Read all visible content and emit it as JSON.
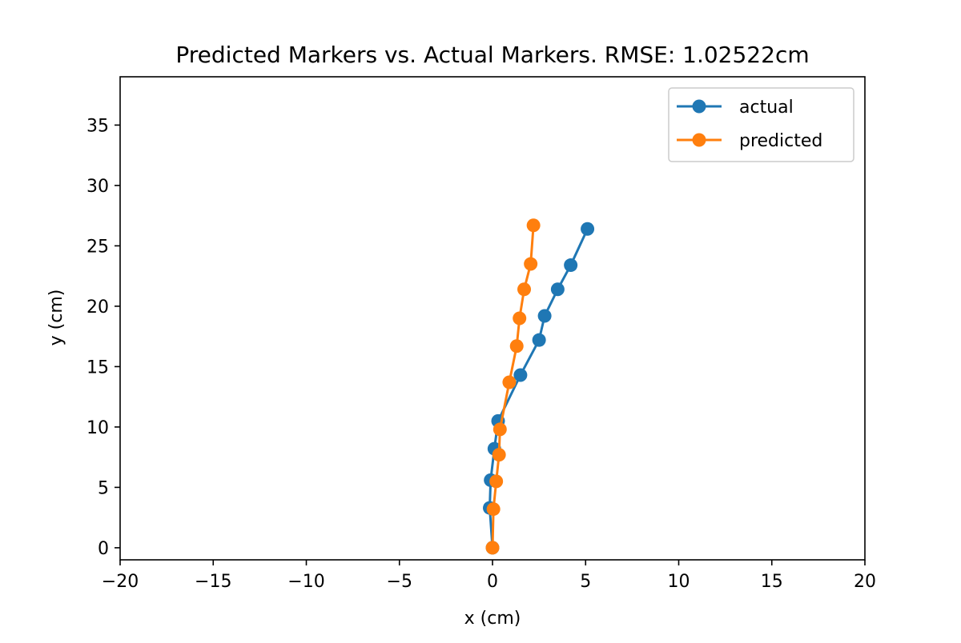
{
  "chart_data": {
    "type": "line",
    "title": "Predicted Markers vs. Actual Markers. RMSE: 1.02522cm",
    "xlabel": "x (cm)",
    "ylabel": "y (cm)",
    "xlim": [
      -20,
      20
    ],
    "ylim": [
      -1,
      39
    ],
    "xticks": [
      -20,
      -15,
      -10,
      -5,
      0,
      5,
      10,
      15,
      20
    ],
    "xtick_labels": [
      "−20",
      "−15",
      "−10",
      "−5",
      "0",
      "5",
      "10",
      "15",
      "20"
    ],
    "yticks": [
      0,
      5,
      10,
      15,
      20,
      25,
      30,
      35
    ],
    "ytick_labels": [
      "0",
      "5",
      "10",
      "15",
      "20",
      "25",
      "30",
      "35"
    ],
    "grid": false,
    "legend": "top-right",
    "series": [
      {
        "name": "actual",
        "color": "#1f77b4",
        "marker": "circle",
        "x": [
          0.0,
          -0.15,
          -0.1,
          0.1,
          0.3,
          1.5,
          2.5,
          2.8,
          3.5,
          4.2,
          5.1
        ],
        "y": [
          0.0,
          3.3,
          5.6,
          8.2,
          10.5,
          14.3,
          17.2,
          19.2,
          21.4,
          23.4,
          26.4
        ]
      },
      {
        "name": "predicted",
        "color": "#ff7f0e",
        "marker": "circle",
        "x": [
          0.0,
          0.05,
          0.2,
          0.35,
          0.4,
          0.9,
          1.3,
          1.45,
          1.7,
          2.05,
          2.2
        ],
        "y": [
          0.0,
          3.2,
          5.5,
          7.7,
          9.8,
          13.7,
          16.7,
          19.0,
          21.4,
          23.5,
          26.7
        ]
      }
    ]
  }
}
